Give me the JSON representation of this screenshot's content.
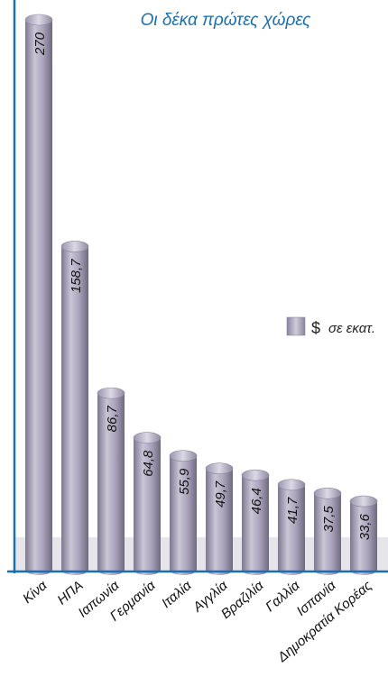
{
  "chart_data": {
    "type": "bar",
    "title": "",
    "subtitle": "Οι δέκα πρώτες χώρες",
    "categories": [
      "Κίνα",
      "ΗΠΑ",
      "Ιαπωνία",
      "Γερμανία",
      "Ιταλία",
      "Αγγλία",
      "Βραζιλία",
      "Γαλλία",
      "Ισπανία",
      "Δημοκρατία Κορέας"
    ],
    "series": [
      {
        "name": "$ σε εκατ.",
        "values": [
          270,
          158.7,
          86.7,
          64.8,
          55.9,
          49.7,
          46.4,
          41.7,
          37.5,
          33.6
        ],
        "value_labels": [
          "270",
          "158,7",
          "86,7",
          "64,8",
          "55,9",
          "49,7",
          "46,4",
          "41,7",
          "37,5",
          "33,6"
        ]
      }
    ],
    "legend": {
      "position": "right",
      "label_symbol": "$",
      "label_text": "σε εκατ."
    },
    "grid": false,
    "colors": {
      "bar": "#a8a4b8",
      "bar_dark": "#6f6a80",
      "bar_light": "#d6d3e0",
      "axis": "#1a6fb0",
      "title": "#1a6fb0",
      "band": "#e6e6ea"
    }
  }
}
